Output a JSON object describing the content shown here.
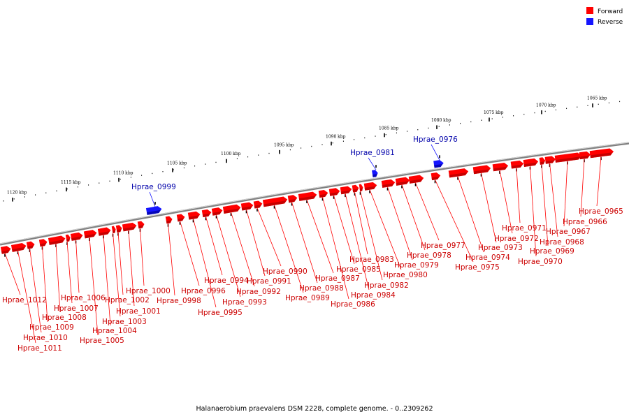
{
  "legend": [
    {
      "key": "forward",
      "label": "Forward",
      "color": "#ff0000"
    },
    {
      "key": "reverse",
      "label": "Reverse",
      "color": "#1515ff"
    }
  ],
  "colors": {
    "forward": "#ff0000",
    "forward_dark": "#b40000",
    "forward_label": "#cc0000",
    "reverse": "#1515ff",
    "reverse_dark": "#0000a0",
    "reverse_label": "#0000aa",
    "backbone": "#808080"
  },
  "caption": "Halanaerobium praevalens DSM 2228, complete genome. - 0..2309262",
  "ticks": [
    "1065 kbp",
    "1070 kbp",
    "1075 kbp",
    "1080 kbp",
    "1085 kbp",
    "1090 kbp",
    "1095 kbp",
    "1100 kbp",
    "1105 kbp",
    "1110 kbp",
    "1115 kbp",
    "1120 kbp"
  ],
  "genes": [
    {
      "name": "Hprae_0965",
      "strand": "forward"
    },
    {
      "name": "Hprae_0966",
      "strand": "forward"
    },
    {
      "name": "Hprae_0967",
      "strand": "forward"
    },
    {
      "name": "Hprae_0968",
      "strand": "forward"
    },
    {
      "name": "Hprae_0969",
      "strand": "forward"
    },
    {
      "name": "Hprae_0970",
      "strand": "forward"
    },
    {
      "name": "Hprae_0971",
      "strand": "forward"
    },
    {
      "name": "Hprae_0972",
      "strand": "forward"
    },
    {
      "name": "Hprae_0973",
      "strand": "forward"
    },
    {
      "name": "Hprae_0974",
      "strand": "forward"
    },
    {
      "name": "Hprae_0975",
      "strand": "forward"
    },
    {
      "name": "Hprae_0976",
      "strand": "reverse"
    },
    {
      "name": "Hprae_0977",
      "strand": "forward"
    },
    {
      "name": "Hprae_0978",
      "strand": "forward"
    },
    {
      "name": "Hprae_0979",
      "strand": "forward"
    },
    {
      "name": "Hprae_0980",
      "strand": "forward"
    },
    {
      "name": "Hprae_0981",
      "strand": "reverse"
    },
    {
      "name": "Hprae_0982",
      "strand": "forward"
    },
    {
      "name": "Hprae_0983",
      "strand": "forward"
    },
    {
      "name": "Hprae_0984",
      "strand": "forward"
    },
    {
      "name": "Hprae_0985",
      "strand": "forward"
    },
    {
      "name": "Hprae_0986",
      "strand": "forward"
    },
    {
      "name": "Hprae_0987",
      "strand": "forward"
    },
    {
      "name": "Hprae_0988",
      "strand": "forward"
    },
    {
      "name": "Hprae_0989",
      "strand": "forward"
    },
    {
      "name": "Hprae_0990",
      "strand": "forward"
    },
    {
      "name": "Hprae_0991",
      "strand": "forward"
    },
    {
      "name": "Hprae_0992",
      "strand": "forward"
    },
    {
      "name": "Hprae_0993",
      "strand": "forward"
    },
    {
      "name": "Hprae_0994",
      "strand": "forward"
    },
    {
      "name": "Hprae_0995",
      "strand": "forward"
    },
    {
      "name": "Hprae_0996",
      "strand": "forward"
    },
    {
      "name": "Hprae_0998",
      "strand": "forward"
    },
    {
      "name": "Hprae_0999",
      "strand": "reverse"
    },
    {
      "name": "Hprae_1000",
      "strand": "forward"
    },
    {
      "name": "Hprae_1001",
      "strand": "forward"
    },
    {
      "name": "Hprae_1002",
      "strand": "forward"
    },
    {
      "name": "Hprae_1003",
      "strand": "forward"
    },
    {
      "name": "Hprae_1004",
      "strand": "forward"
    },
    {
      "name": "Hprae_1005",
      "strand": "forward"
    },
    {
      "name": "Hprae_1006",
      "strand": "forward"
    },
    {
      "name": "Hprae_1007",
      "strand": "forward"
    },
    {
      "name": "Hprae_1008",
      "strand": "forward"
    },
    {
      "name": "Hprae_1009",
      "strand": "forward"
    },
    {
      "name": "Hprae_1010",
      "strand": "forward"
    },
    {
      "name": "Hprae_1011",
      "strand": "forward"
    },
    {
      "name": "Hprae_1012",
      "strand": "forward"
    }
  ]
}
